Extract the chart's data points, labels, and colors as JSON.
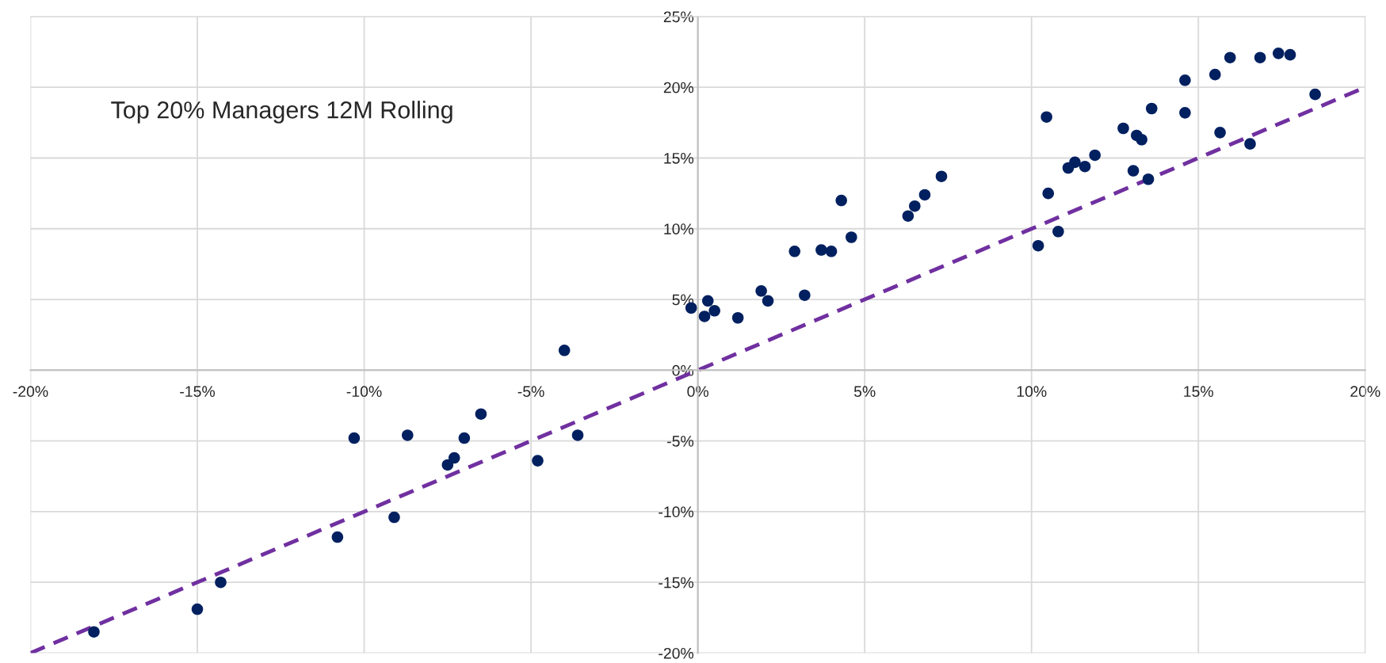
{
  "chart_data": {
    "type": "scatter",
    "title": "Top 20% Managers 12M Rolling",
    "xlim": [
      -20,
      20
    ],
    "ylim": [
      -20,
      25
    ],
    "xticks": [
      {
        "value": -20,
        "label": "-20%"
      },
      {
        "value": -15,
        "label": "-15%"
      },
      {
        "value": -10,
        "label": "-10%"
      },
      {
        "value": -5,
        "label": "-5%"
      },
      {
        "value": 0,
        "label": "0%"
      },
      {
        "value": 5,
        "label": "5%"
      },
      {
        "value": 10,
        "label": "10%"
      },
      {
        "value": 15,
        "label": "15%"
      },
      {
        "value": 20,
        "label": "20%"
      }
    ],
    "yticks": [
      {
        "value": -20,
        "label": "-20%"
      },
      {
        "value": -15,
        "label": "-15%"
      },
      {
        "value": -10,
        "label": "-10%"
      },
      {
        "value": -5,
        "label": "-5%"
      },
      {
        "value": 0,
        "label": "0%"
      },
      {
        "value": 5,
        "label": "5%"
      },
      {
        "value": 10,
        "label": "10%"
      },
      {
        "value": 15,
        "label": "15%"
      },
      {
        "value": 20,
        "label": "20%"
      },
      {
        "value": 25,
        "label": "25%"
      }
    ],
    "grid": true,
    "legend": false,
    "marker": "circle",
    "series": [
      {
        "color": "#002060",
        "x": [
          -18.1,
          -15,
          -14.3,
          -10.8,
          -10.3,
          -9.1,
          -8.7,
          -7.5,
          -7.3,
          -7.0,
          -6.5,
          -4.8,
          -4.0,
          -3.6,
          -0.2,
          0.2,
          0.3,
          0.5,
          1.2,
          1.9,
          2.1,
          2.9,
          3.2,
          3.7,
          4.0,
          4.3,
          4.6,
          6.3,
          6.5,
          6.8,
          7.3,
          10.45,
          10.5,
          10.2,
          10.8,
          11.1,
          11.3,
          11.6,
          11.9,
          12.75,
          13.05,
          13.15,
          13.3,
          13.5,
          13.6,
          14.6,
          14.6,
          15.5,
          15.65,
          15.95,
          16.55,
          16.85,
          17.4,
          17.75,
          18.5
        ],
        "values": [
          -18.5,
          -16.9,
          -15.0,
          -11.8,
          -4.8,
          -10.4,
          -4.6,
          -6.7,
          -6.2,
          -4.8,
          -3.1,
          -6.4,
          1.4,
          -4.6,
          4.4,
          3.8,
          4.9,
          4.2,
          3.7,
          5.6,
          4.9,
          8.4,
          5.3,
          8.5,
          8.4,
          12.0,
          9.4,
          10.9,
          11.6,
          12.4,
          13.7,
          17.9,
          12.5,
          8.8,
          9.8,
          14.3,
          14.7,
          14.4,
          15.2,
          17.1,
          14.1,
          16.6,
          16.3,
          13.5,
          18.5,
          20.5,
          18.2,
          20.9,
          16.8,
          22.1,
          16.0,
          22.1,
          22.4,
          22.3,
          19.5
        ]
      },
      {
        "type": "line",
        "color": "#7030a0",
        "line_style": "dashed",
        "marker": "none",
        "x": [
          -20,
          20
        ],
        "values": [
          -20,
          20
        ]
      }
    ]
  }
}
